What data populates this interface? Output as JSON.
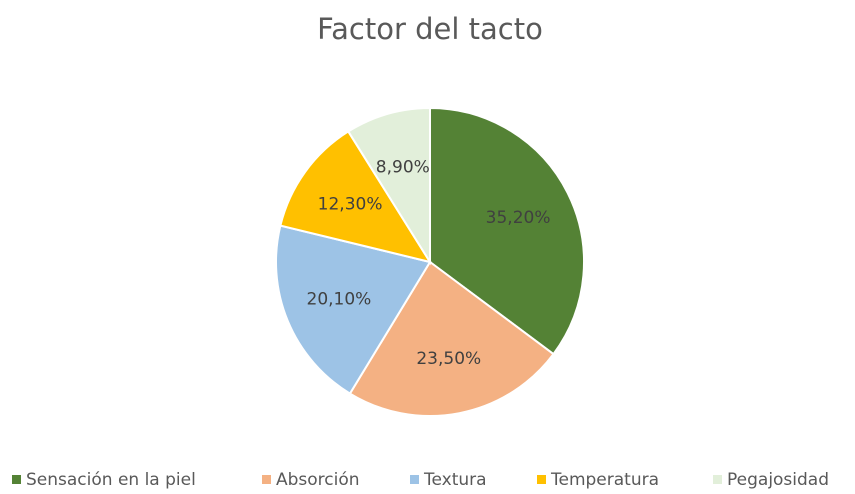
{
  "chart_data": {
    "type": "pie",
    "title": "Factor del tacto",
    "categories": [
      "Sensación en la piel",
      "Absorción",
      "Textura",
      "Temperatura",
      "Pegajosidad"
    ],
    "values": [
      35.2,
      23.5,
      20.1,
      12.3,
      8.9
    ],
    "value_labels": [
      "35,20%",
      "23,50%",
      "20,10%",
      "12,30%",
      "8,90%"
    ],
    "colors": [
      "#548235",
      "#f4b183",
      "#9dc3e6",
      "#ffc000",
      "#e2efda"
    ],
    "legend": "bottom"
  }
}
